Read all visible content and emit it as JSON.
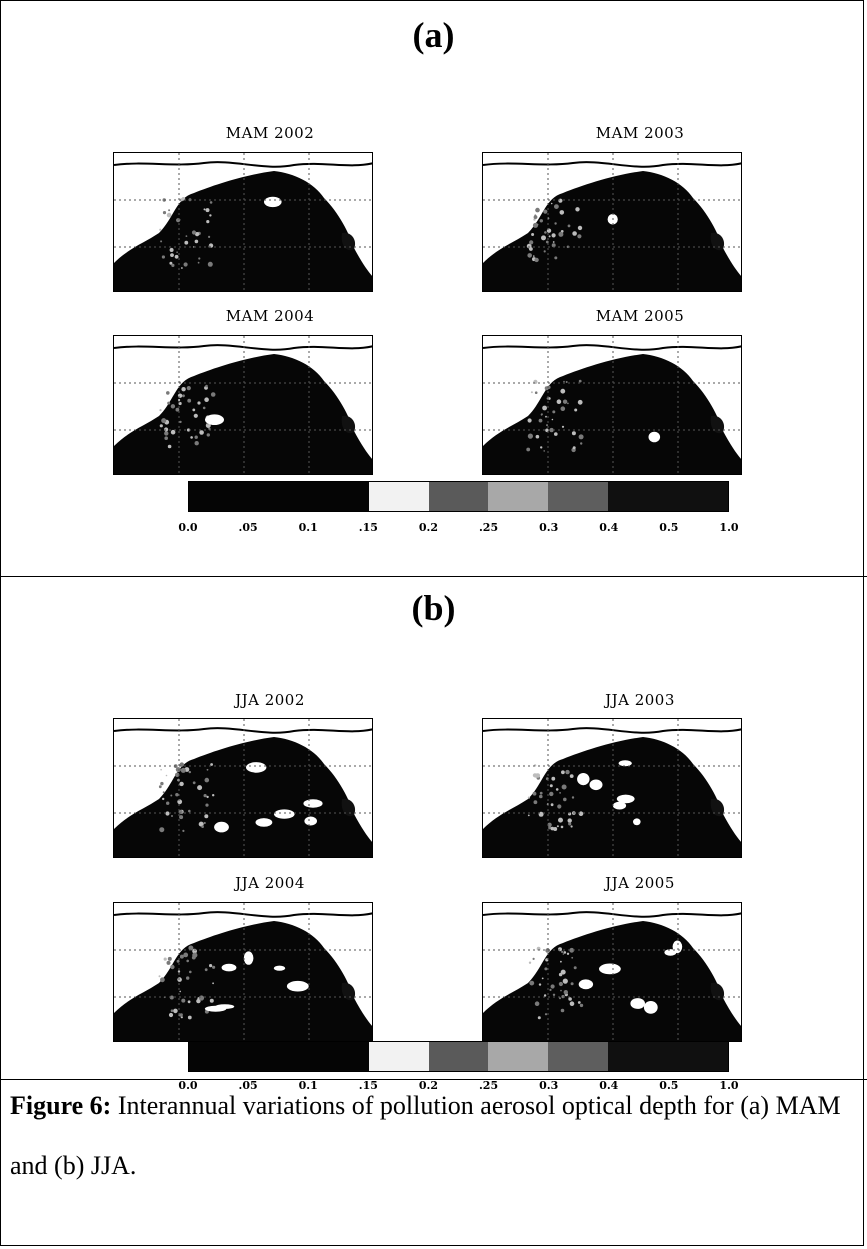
{
  "panels": [
    {
      "letter": "(a)",
      "maps": [
        {
          "title": "MAM 2002",
          "variant": 0
        },
        {
          "title": "MAM 2003",
          "variant": 1
        },
        {
          "title": "MAM 2004",
          "variant": 2
        },
        {
          "title": "MAM 2005",
          "variant": 3
        }
      ]
    },
    {
      "letter": "(b)",
      "maps": [
        {
          "title": "JJA 2002",
          "variant": 4
        },
        {
          "title": "JJA 2003",
          "variant": 5
        },
        {
          "title": "JJA 2004",
          "variant": 6
        },
        {
          "title": "JJA 2005",
          "variant": 7
        }
      ]
    }
  ],
  "colorbar": {
    "labels": [
      "0.0",
      ".05",
      "0.1",
      ".15",
      "0.2",
      ".25",
      "0.3",
      "0.4",
      "0.5",
      "1.0"
    ],
    "segments": [
      "#050505",
      "#050505",
      "#050505",
      "#f2f2f2",
      "#5a5a5a",
      "#a8a8a8",
      "#5e5e5e",
      "#101010",
      "#101010"
    ]
  },
  "caption": {
    "label": "Figure 6:",
    "text": " Interannual variations of pollution aerosol optical depth for (a) MAM and (b) JJA."
  }
}
